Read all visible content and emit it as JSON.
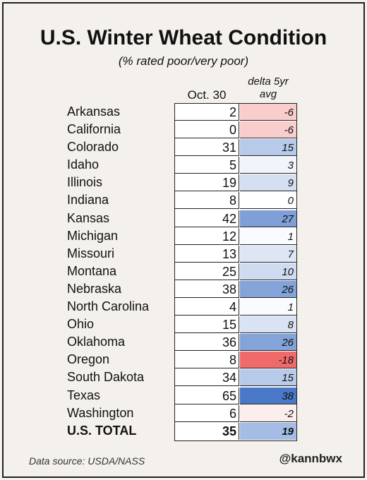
{
  "title": "U.S. Winter Wheat Condition",
  "subtitle": "(% rated poor/very poor)",
  "footer": {
    "source": "Data source: USDA/NASS",
    "handle": "@kannbwx"
  },
  "colors": {
    "positive_max": "#4a78c8",
    "negative_max": "#f06a6a",
    "neutral": "#ffffff"
  },
  "chart_data": {
    "type": "table",
    "title": "U.S. Winter Wheat Condition",
    "subtitle": "(% rated poor/very poor)",
    "columns": [
      "",
      "Oct. 30",
      "delta 5yr avg"
    ],
    "rows": [
      {
        "state": "Arkansas",
        "value": "2",
        "delta": "-6",
        "delta_num": -6
      },
      {
        "state": "California",
        "value": "0",
        "delta": "-6",
        "delta_num": -6
      },
      {
        "state": "Colorado",
        "value": "31",
        "delta": "15",
        "delta_num": 15
      },
      {
        "state": "Idaho",
        "value": "5",
        "delta": "3",
        "delta_num": 3
      },
      {
        "state": "Illinois",
        "value": "19",
        "delta": "9",
        "delta_num": 9
      },
      {
        "state": "Indiana",
        "value": "8",
        "delta": "0",
        "delta_num": 0
      },
      {
        "state": "Kansas",
        "value": "42",
        "delta": "27",
        "delta_num": 27
      },
      {
        "state": "Michigan",
        "value": "12",
        "delta": "1",
        "delta_num": 1
      },
      {
        "state": "Missouri",
        "value": "13",
        "delta": "7",
        "delta_num": 7
      },
      {
        "state": "Montana",
        "value": "25",
        "delta": "10",
        "delta_num": 10
      },
      {
        "state": "Nebraska",
        "value": "38",
        "delta": "26",
        "delta_num": 26
      },
      {
        "state": "North Carolina",
        "value": "4",
        "delta": "1",
        "delta_num": 1
      },
      {
        "state": "Ohio",
        "value": "15",
        "delta": "8",
        "delta_num": 8
      },
      {
        "state": "Oklahoma",
        "value": "36",
        "delta": "26",
        "delta_num": 26
      },
      {
        "state": "Oregon",
        "value": "8",
        "delta": "-18",
        "delta_num": -18
      },
      {
        "state": "South Dakota",
        "value": "34",
        "delta": "15",
        "delta_num": 15
      },
      {
        "state": "Texas",
        "value": "65",
        "delta": "38",
        "delta_num": 38
      },
      {
        "state": "Washington",
        "value": "6",
        "delta": "-2",
        "delta_num": -2
      },
      {
        "state": "U.S. TOTAL",
        "value": "35",
        "delta": "19",
        "delta_num": 19,
        "total": true
      }
    ]
  }
}
